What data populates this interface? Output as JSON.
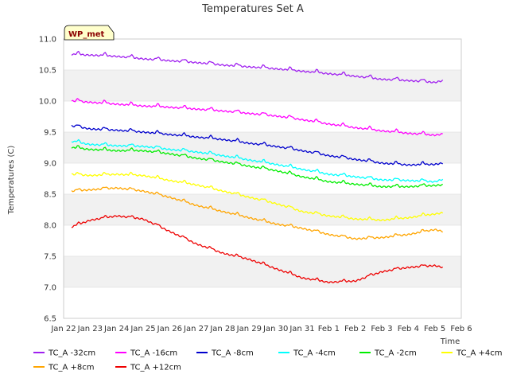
{
  "chart_data": {
    "type": "line",
    "title": "Temperatures Set A",
    "xlabel": "Time",
    "ylabel": "Temperatures (C)",
    "badge": "WP_met",
    "ylim": [
      6.5,
      11.0
    ],
    "yticks": [
      6.5,
      7.0,
      7.5,
      8.0,
      8.5,
      9.0,
      9.5,
      10.0,
      10.5,
      11.0
    ],
    "ytick_labels": [
      "6.5",
      "7.0",
      "7.5",
      "8.0",
      "8.5",
      "9.0",
      "9.5",
      "10.0",
      "10.5",
      "11.0"
    ],
    "xticks": [
      "Jan 22",
      "Jan 23",
      "Jan 24",
      "Jan 25",
      "Jan 26",
      "Jan 27",
      "Jan 28",
      "Jan 29",
      "Jan 30",
      "Jan 31",
      "Feb 1",
      "Feb 2",
      "Feb 3",
      "Feb 4",
      "Feb 5",
      "Feb 6"
    ],
    "xlim": [
      "Jan 22",
      "Feb 6"
    ],
    "grid": "horizontal alternating bands",
    "legend_position": "bottom",
    "series": [
      {
        "name": "TC_A -32cm",
        "color": "#a020f0",
        "x": [
          "Jan 22.3",
          "Jan 23",
          "Jan 24",
          "Jan 25",
          "Jan 26",
          "Jan 27",
          "Jan 28",
          "Jan 29",
          "Jan 30",
          "Jan 31",
          "Feb 1",
          "Feb 2",
          "Feb 3",
          "Feb 4",
          "Feb 5",
          "Feb 5.3"
        ],
        "values": [
          10.75,
          10.74,
          10.72,
          10.68,
          10.65,
          10.62,
          10.58,
          10.55,
          10.52,
          10.48,
          10.44,
          10.4,
          10.35,
          10.33,
          10.3,
          10.33
        ]
      },
      {
        "name": "TC_A -16cm",
        "color": "#ff00ff",
        "x": [
          "Jan 22.3",
          "Jan 23",
          "Jan 24",
          "Jan 25",
          "Jan 26",
          "Jan 27",
          "Jan 28",
          "Jan 29",
          "Jan 30",
          "Jan 31",
          "Feb 1",
          "Feb 2",
          "Feb 3",
          "Feb 4",
          "Feb 5",
          "Feb 5.3"
        ],
        "values": [
          10.0,
          9.98,
          9.95,
          9.92,
          9.9,
          9.87,
          9.84,
          9.8,
          9.76,
          9.7,
          9.63,
          9.57,
          9.52,
          9.48,
          9.45,
          9.47
        ]
      },
      {
        "name": "TC_A -8cm",
        "color": "#0000cd",
        "x": [
          "Jan 22.3",
          "Jan 23",
          "Jan 24",
          "Jan 25",
          "Jan 26",
          "Jan 27",
          "Jan 28",
          "Jan 29",
          "Jan 30",
          "Jan 31",
          "Feb 1",
          "Feb 2",
          "Feb 3",
          "Feb 4",
          "Feb 5",
          "Feb 5.3"
        ],
        "values": [
          9.6,
          9.55,
          9.53,
          9.5,
          9.46,
          9.42,
          9.38,
          9.32,
          9.27,
          9.2,
          9.12,
          9.06,
          9.0,
          8.97,
          8.98,
          9.0
        ]
      },
      {
        "name": "TC_A -4cm",
        "color": "#00ffff",
        "x": [
          "Jan 22.3",
          "Jan 23",
          "Jan 24",
          "Jan 25",
          "Jan 26",
          "Jan 27",
          "Jan 28",
          "Jan 29",
          "Jan 30",
          "Jan 31",
          "Feb 1",
          "Feb 2",
          "Feb 3",
          "Feb 4",
          "Feb 5",
          "Feb 5.3"
        ],
        "values": [
          9.35,
          9.3,
          9.28,
          9.27,
          9.22,
          9.18,
          9.12,
          9.05,
          8.98,
          8.9,
          8.82,
          8.78,
          8.73,
          8.72,
          8.7,
          8.74
        ]
      },
      {
        "name": "TC_A -2cm",
        "color": "#00ee00",
        "x": [
          "Jan 22.3",
          "Jan 23",
          "Jan 24",
          "Jan 25",
          "Jan 26",
          "Jan 27",
          "Jan 28",
          "Jan 29",
          "Jan 30",
          "Jan 31",
          "Feb 1",
          "Feb 2",
          "Feb 3",
          "Feb 4",
          "Feb 5",
          "Feb 5.3"
        ],
        "values": [
          9.25,
          9.22,
          9.2,
          9.2,
          9.15,
          9.08,
          9.02,
          8.95,
          8.88,
          8.78,
          8.7,
          8.66,
          8.62,
          8.62,
          8.64,
          8.65
        ]
      },
      {
        "name": "TC_A +4cm",
        "color": "#ffff00",
        "x": [
          "Jan 22.3",
          "Jan 23",
          "Jan 24",
          "Jan 25",
          "Jan 26",
          "Jan 27",
          "Jan 28",
          "Jan 29",
          "Jan 30",
          "Jan 31",
          "Feb 1",
          "Feb 2",
          "Feb 3",
          "Feb 4",
          "Feb 5",
          "Feb 5.3"
        ],
        "values": [
          8.82,
          8.8,
          8.82,
          8.8,
          8.72,
          8.65,
          8.55,
          8.45,
          8.35,
          8.22,
          8.15,
          8.1,
          8.08,
          8.12,
          8.18,
          8.2
        ]
      },
      {
        "name": "TC_A +8cm",
        "color": "#ffa500",
        "x": [
          "Jan 22.3",
          "Jan 23",
          "Jan 24",
          "Jan 25",
          "Jan 26",
          "Jan 27",
          "Jan 28",
          "Jan 29",
          "Jan 30",
          "Jan 31",
          "Feb 1",
          "Feb 2",
          "Feb 3",
          "Feb 4",
          "Feb 5",
          "Feb 5.3"
        ],
        "values": [
          8.55,
          8.57,
          8.6,
          8.55,
          8.45,
          8.32,
          8.22,
          8.12,
          8.02,
          7.95,
          7.85,
          7.78,
          7.8,
          7.85,
          7.93,
          7.9
        ]
      },
      {
        "name": "TC_A +12cm",
        "color": "#ee0000",
        "x": [
          "Jan 22.3",
          "Jan 23",
          "Jan 24",
          "Jan 25",
          "Jan 26",
          "Jan 27",
          "Jan 28",
          "Jan 29",
          "Jan 30",
          "Jan 31",
          "Feb 1",
          "Feb 2",
          "Feb 3",
          "Feb 4",
          "Feb 5",
          "Feb 5.3"
        ],
        "values": [
          7.97,
          8.08,
          8.15,
          8.1,
          7.9,
          7.7,
          7.55,
          7.45,
          7.3,
          7.15,
          7.08,
          7.1,
          7.25,
          7.32,
          7.35,
          7.32
        ]
      }
    ]
  }
}
